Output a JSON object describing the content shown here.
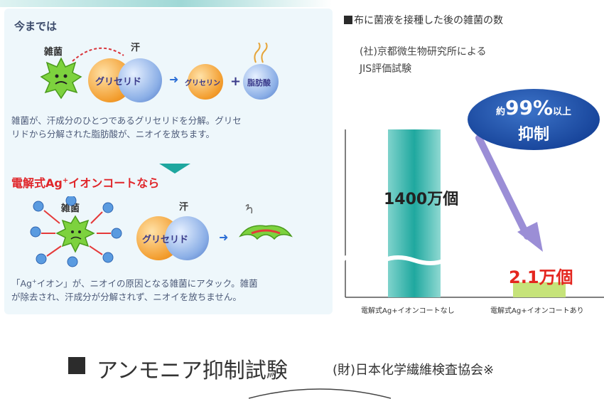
{
  "left": {
    "before_heading": "今までは",
    "bacteria_label_1": "雑菌",
    "sweat_label_1": "汗",
    "glyceride_1": "グリセリド",
    "glycerin": "グリセリン",
    "fatty_acid": "脂肪酸",
    "para1_line1": "雑菌が、汗成分のひとつであるグリセリドを分解。グリセ",
    "para1_line2": "リドから分解された脂肪酸が、ニオイを放ちます。",
    "ag_heading_pre": "電解式Ag",
    "ag_heading_sup": "+",
    "ag_heading_post": "イオンコートなら",
    "bacteria_label_2": "雑菌",
    "sweat_label_2": "汗",
    "glyceride_2": "グリセリド",
    "para2_line1_pre": "「Ag",
    "para2_line1_sup": "+",
    "para2_line1_post": "イオン」が、ニオイの原因となる雑菌にアタック。雑菌",
    "para2_line2": "が除去され、汗成分が分解されず、ニオイを放ちません。"
  },
  "right": {
    "title": "布に菌液を接種した後の雑菌の数",
    "source_line1": "(社)京都微生物研究所による",
    "source_line2": "JIS評価試験",
    "bubble_line1_pre": "約",
    "bubble_line1_num": "99%",
    "bubble_line1_post": "以上",
    "bubble_line2": "抑制",
    "colors": {
      "bar": "#1fa89f",
      "bubble": "#1c4fa3",
      "arrow": "#9b8ed6",
      "red": "#e4261f"
    }
  },
  "chart_data": {
    "type": "bar",
    "categories": [
      "電解式Ag+イオンコートなし",
      "電解式Ag+イオンコートあり"
    ],
    "values": [
      14000000,
      21000
    ],
    "value_labels": [
      "1400万個",
      "2.1万個"
    ],
    "title": "布に菌液を接種した後の雑菌の数",
    "axis_break": true
  },
  "bottom": {
    "title": "アンモニア抑制試験",
    "subtitle": "(財)日本化学繊維検査協会※"
  }
}
